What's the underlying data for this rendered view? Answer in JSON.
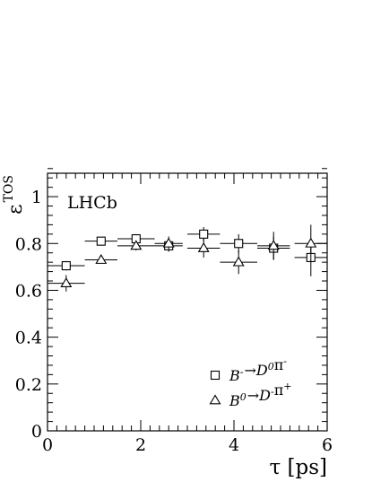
{
  "chart_data": {
    "type": "scatter",
    "annotation": "LHCb",
    "xlabel": "τ [ps]",
    "ylabel_base": "ε",
    "ylabel_sup": "TOS",
    "xlim": [
      0,
      6
    ],
    "ylim": [
      0,
      1.1
    ],
    "xticks": [
      0,
      2,
      4,
      6
    ],
    "yticks": [
      0,
      0.2,
      0.4,
      0.6,
      0.8,
      1
    ],
    "xtick_labels": [
      "0",
      "2",
      "4",
      "6"
    ],
    "ytick_labels": [
      "0",
      "0.2",
      "0.4",
      "0.6",
      "0.8",
      "1"
    ],
    "legend_position": "bottom-right",
    "grid": false,
    "series": [
      {
        "name_parts": [
          {
            "t": "B",
            "s": "normal"
          },
          {
            "t": "-",
            "s": "sup"
          },
          {
            "t": "→",
            "s": "arrow"
          },
          {
            "t": "D",
            "s": "normal"
          },
          {
            "t": "0",
            "s": "sup"
          },
          {
            "t": "π",
            "s": "upright"
          },
          {
            "t": "-",
            "s": "sup"
          }
        ],
        "marker": "square",
        "points": [
          {
            "x": 0.4,
            "xerr": 0.4,
            "y": 0.705,
            "yerr": 0.02
          },
          {
            "x": 1.15,
            "xerr": 0.35,
            "y": 0.81,
            "yerr": 0.012
          },
          {
            "x": 1.9,
            "xerr": 0.4,
            "y": 0.82,
            "yerr": 0.02
          },
          {
            "x": 2.6,
            "xerr": 0.3,
            "y": 0.79,
            "yerr": 0.025
          },
          {
            "x": 3.35,
            "xerr": 0.35,
            "y": 0.84,
            "yerr": 0.03
          },
          {
            "x": 4.1,
            "xerr": 0.4,
            "y": 0.8,
            "yerr": 0.04
          },
          {
            "x": 4.85,
            "xerr": 0.35,
            "y": 0.78,
            "yerr": 0.05
          },
          {
            "x": 5.65,
            "xerr": 0.35,
            "y": 0.74,
            "yerr": 0.08
          }
        ]
      },
      {
        "name_parts": [
          {
            "t": "B",
            "s": "normal"
          },
          {
            "t": "0",
            "s": "sup"
          },
          {
            "t": "→",
            "s": "arrow"
          },
          {
            "t": "D",
            "s": "normal"
          },
          {
            "t": "-",
            "s": "sup"
          },
          {
            "t": "π",
            "s": "upright"
          },
          {
            "t": "+",
            "s": "sup"
          }
        ],
        "marker": "triangle",
        "points": [
          {
            "x": 0.4,
            "xerr": 0.4,
            "y": 0.63,
            "yerr": 0.035
          },
          {
            "x": 1.15,
            "xerr": 0.35,
            "y": 0.73,
            "yerr": 0.015
          },
          {
            "x": 1.9,
            "xerr": 0.4,
            "y": 0.79,
            "yerr": 0.02
          },
          {
            "x": 2.6,
            "xerr": 0.3,
            "y": 0.8,
            "yerr": 0.03
          },
          {
            "x": 3.35,
            "xerr": 0.35,
            "y": 0.78,
            "yerr": 0.04
          },
          {
            "x": 4.1,
            "xerr": 0.4,
            "y": 0.72,
            "yerr": 0.05
          },
          {
            "x": 4.85,
            "xerr": 0.35,
            "y": 0.79,
            "yerr": 0.06
          },
          {
            "x": 5.65,
            "xerr": 0.35,
            "y": 0.8,
            "yerr": 0.08
          }
        ]
      }
    ]
  }
}
